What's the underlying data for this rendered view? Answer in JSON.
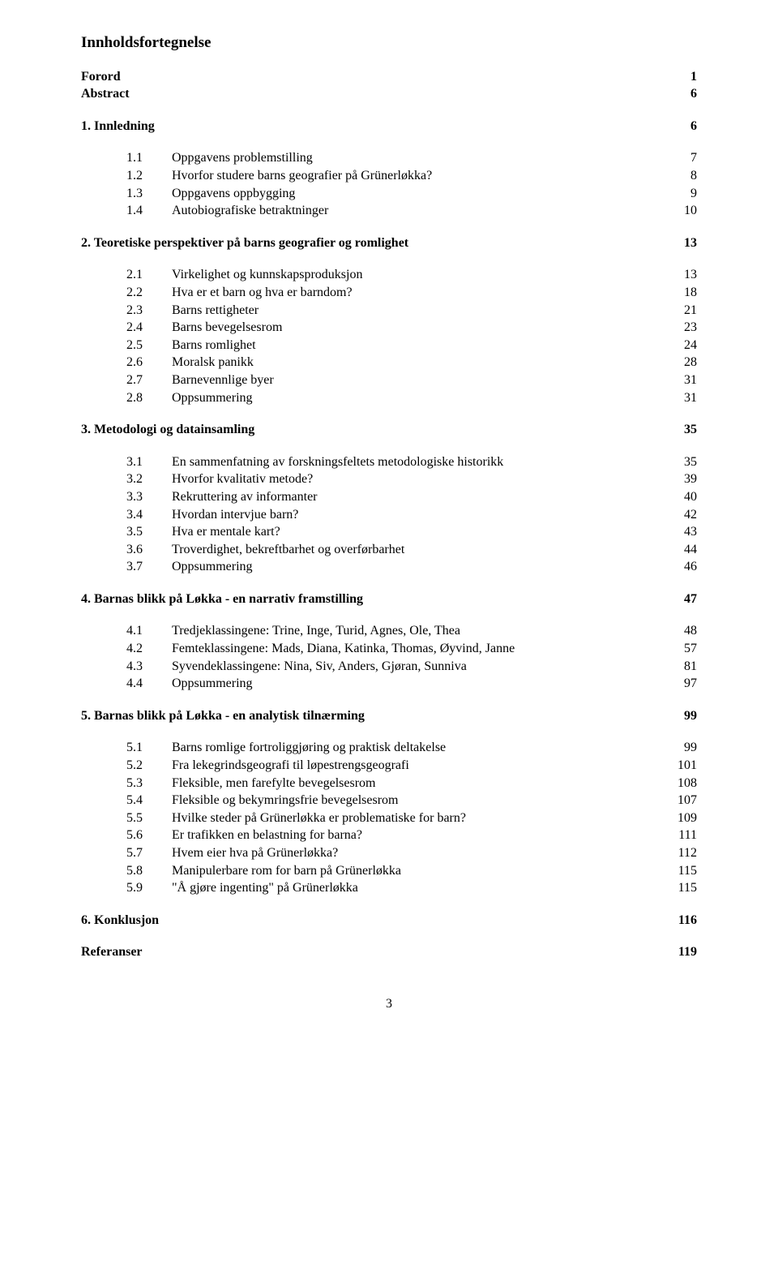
{
  "title": "Innholdsfortegnelse",
  "top_entries": [
    {
      "label": "Forord",
      "page": "1"
    },
    {
      "label": "Abstract",
      "page": "6"
    }
  ],
  "sections": [
    {
      "num": "1.",
      "title": "Innledning",
      "page": "6",
      "items": [
        {
          "num": "1.1",
          "text": "Oppgavens problemstilling",
          "page": "7"
        },
        {
          "num": "1.2",
          "text": "Hvorfor studere barns geografier på Grünerløkka?",
          "page": "8"
        },
        {
          "num": "1.3",
          "text": "Oppgavens oppbygging",
          "page": "9"
        },
        {
          "num": "1.4",
          "text": "Autobiografiske betraktninger",
          "page": "10"
        }
      ]
    },
    {
      "num": "2.",
      "title": "Teoretiske perspektiver på barns geografier og romlighet",
      "page": "13",
      "items": [
        {
          "num": "2.1",
          "text": "Virkelighet og kunnskapsproduksjon",
          "page": "13"
        },
        {
          "num": "2.2",
          "text": "Hva er et barn og hva er barndom?",
          "page": "18"
        },
        {
          "num": "2.3",
          "text": "Barns rettigheter",
          "page": "21"
        },
        {
          "num": "2.4",
          "text": "Barns bevegelsesrom",
          "page": "23"
        },
        {
          "num": "2.5",
          "text": "Barns romlighet",
          "page": "24"
        },
        {
          "num": "2.6",
          "text": "Moralsk panikk",
          "page": "28"
        },
        {
          "num": "2.7",
          "text": "Barnevennlige byer",
          "page": "31"
        },
        {
          "num": "2.8",
          "text": "Oppsummering",
          "page": "31"
        }
      ]
    },
    {
      "num": "3.",
      "title": "Metodologi og datainsamling",
      "page": "35",
      "items": [
        {
          "num": "3.1",
          "text": "En sammenfatning av forskningsfeltets metodologiske historikk",
          "page": "35"
        },
        {
          "num": "3.2",
          "text": "Hvorfor kvalitativ metode?",
          "page": "39"
        },
        {
          "num": "3.3",
          "text": "Rekruttering av informanter",
          "page": "40"
        },
        {
          "num": "3.4",
          "text": "Hvordan intervjue barn?",
          "page": "42"
        },
        {
          "num": "3.5",
          "text": "Hva er mentale kart?",
          "page": "43"
        },
        {
          "num": "3.6",
          "text": "Troverdighet, bekreftbarhet og overførbarhet",
          "page": "44"
        },
        {
          "num": "3.7",
          "text": "Oppsummering",
          "page": "46"
        }
      ]
    },
    {
      "num": "4.",
      "title": "Barnas blikk på Løkka - en narrativ framstilling",
      "page": "47",
      "items": [
        {
          "num": "4.1",
          "text": "Tredjeklassingene: Trine, Inge, Turid, Agnes, Ole, Thea",
          "page": "48"
        },
        {
          "num": "4.2",
          "text": "Femteklassingene: Mads, Diana, Katinka, Thomas, Øyvind, Janne",
          "page": "57"
        },
        {
          "num": "4.3",
          "text": "Syvendeklassingene: Nina, Siv, Anders, Gjøran, Sunniva",
          "page": "81"
        },
        {
          "num": "4.4",
          "text": "Oppsummering",
          "page": "97"
        }
      ]
    },
    {
      "num": "5.",
      "title": "Barnas blikk på Løkka - en analytisk tilnærming",
      "page": "99",
      "items": [
        {
          "num": "5.1",
          "text": "Barns romlige fortroliggjøring og praktisk deltakelse",
          "page": "99"
        },
        {
          "num": "5.2",
          "text": "Fra lekegrindsgeografi til løpestrengsgeografi",
          "page": "101"
        },
        {
          "num": "5.3",
          "text": "Fleksible, men farefylte bevegelsesrom",
          "page": "108"
        },
        {
          "num": "5.4",
          "text": "Fleksible og bekymringsfrie bevegelsesrom",
          "page": "107"
        },
        {
          "num": "5.5",
          "text": "Hvilke steder på Grünerløkka er problematiske for barn?",
          "page": "109"
        },
        {
          "num": "5.6",
          "text": "Er trafikken en belastning for barna?",
          "page": "111"
        },
        {
          "num": "5.7",
          "text": "Hvem eier hva på Grünerløkka?",
          "page": "112"
        },
        {
          "num": "5.8",
          "text": "Manipulerbare rom for barn på Grünerløkka",
          "page": "115"
        },
        {
          "num": "5.9",
          "text": "\"Å gjøre ingenting\" på Grünerløkka",
          "page": "115"
        }
      ]
    },
    {
      "num": "6.",
      "title": "Konklusjon",
      "page": "116",
      "items": []
    }
  ],
  "trailing": {
    "label": "Referanser",
    "page": "119"
  },
  "page_number": "3"
}
